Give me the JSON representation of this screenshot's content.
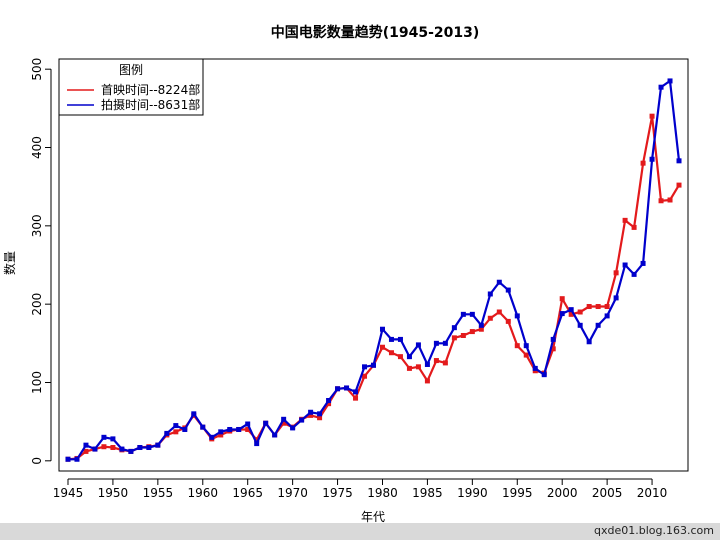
{
  "chart_data": {
    "type": "line",
    "title": "中国电影数量趋势(1945-2013)",
    "xlabel": "年代",
    "ylabel": "数量",
    "xlim": [
      1944,
      2014
    ],
    "ylim": [
      -13,
      513
    ],
    "x_ticks": [
      1945,
      1950,
      1955,
      1960,
      1965,
      1970,
      1975,
      1980,
      1985,
      1990,
      1995,
      2000,
      2005,
      2010
    ],
    "y_ticks": [
      0,
      100,
      200,
      300,
      400,
      500
    ],
    "legend": {
      "title": "图例",
      "position": "top-left"
    },
    "x": [
      1945,
      1946,
      1947,
      1948,
      1949,
      1950,
      1951,
      1952,
      1953,
      1954,
      1955,
      1956,
      1957,
      1958,
      1959,
      1960,
      1961,
      1962,
      1963,
      1964,
      1965,
      1966,
      1967,
      1968,
      1969,
      1970,
      1971,
      1972,
      1973,
      1974,
      1975,
      1976,
      1977,
      1978,
      1979,
      1980,
      1981,
      1982,
      1983,
      1984,
      1985,
      1986,
      1987,
      1988,
      1989,
      1990,
      1991,
      1992,
      1993,
      1994,
      1995,
      1996,
      1997,
      1998,
      1999,
      2000,
      2001,
      2002,
      2003,
      2004,
      2005,
      2006,
      2007,
      2008,
      2009,
      2010,
      2011,
      2012,
      2013
    ],
    "series": [
      {
        "name": "首映时间--8224部",
        "color": "#e31a1c",
        "values": [
          2,
          3,
          12,
          15,
          18,
          17,
          14,
          12,
          17,
          18,
          20,
          33,
          37,
          42,
          58,
          43,
          28,
          33,
          38,
          40,
          40,
          27,
          48,
          33,
          48,
          43,
          53,
          58,
          55,
          73,
          92,
          93,
          80,
          108,
          122,
          145,
          138,
          133,
          118,
          120,
          102,
          128,
          125,
          157,
          160,
          165,
          168,
          182,
          190,
          178,
          147,
          135,
          115,
          112,
          143,
          207,
          187,
          190,
          197,
          197,
          197,
          240,
          307,
          298,
          380,
          440,
          332,
          333,
          352
        ]
      },
      {
        "name": "拍摄时间--8631部",
        "color": "#0000cc",
        "values": [
          2,
          2,
          20,
          15,
          30,
          28,
          15,
          12,
          17,
          17,
          20,
          35,
          45,
          40,
          60,
          43,
          30,
          37,
          40,
          40,
          47,
          22,
          48,
          33,
          53,
          42,
          52,
          62,
          60,
          77,
          92,
          93,
          88,
          120,
          122,
          168,
          155,
          155,
          133,
          148,
          123,
          150,
          150,
          170,
          187,
          187,
          173,
          213,
          228,
          218,
          185,
          147,
          118,
          110,
          155,
          188,
          193,
          173,
          152,
          173,
          185,
          208,
          250,
          238,
          252,
          385,
          477,
          485,
          383
        ]
      }
    ]
  },
  "footer": {
    "watermark": "qxde01.blog.163.com"
  }
}
